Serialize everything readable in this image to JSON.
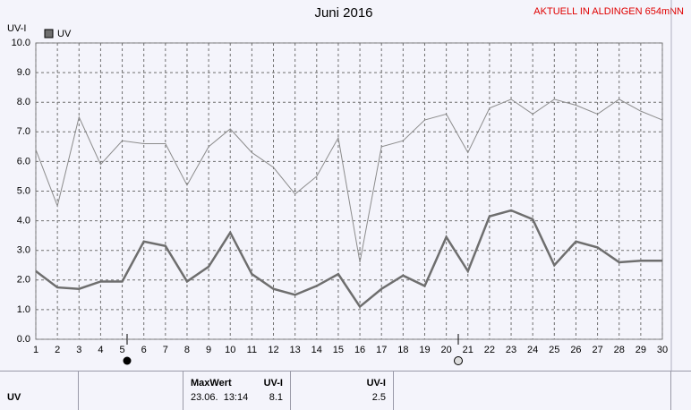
{
  "chart_data": {
    "type": "line",
    "title": "Juni 2016",
    "subtitle": "AKTUELL IN ALDINGEN 654mNN",
    "ylabel": "UV-I",
    "x": [
      1,
      2,
      3,
      4,
      5,
      6,
      7,
      8,
      9,
      10,
      11,
      12,
      13,
      14,
      15,
      16,
      17,
      18,
      19,
      20,
      21,
      22,
      23,
      24,
      25,
      26,
      27,
      28,
      29,
      30
    ],
    "xlim": [
      1,
      30
    ],
    "xticks": [
      1,
      2,
      3,
      4,
      5,
      6,
      7,
      8,
      9,
      10,
      11,
      12,
      13,
      14,
      15,
      16,
      17,
      18,
      19,
      20,
      21,
      22,
      23,
      24,
      25,
      26,
      27,
      28,
      29,
      30
    ],
    "ylim": [
      0,
      10
    ],
    "yticks": [
      {
        "value": 0,
        "label": "0.0"
      },
      {
        "value": 1,
        "label": "1.0"
      },
      {
        "value": 2,
        "label": "2.0"
      },
      {
        "value": 3,
        "label": "3.0"
      },
      {
        "value": 4,
        "label": "4.0"
      },
      {
        "value": 5,
        "label": "5.0"
      },
      {
        "value": 6,
        "label": "6.0"
      },
      {
        "value": 7,
        "label": "7.0"
      },
      {
        "value": 8,
        "label": "8.0"
      },
      {
        "value": 9,
        "label": "9.0"
      },
      {
        "value": 10,
        "label": "10.0"
      }
    ],
    "grid": true,
    "series": [
      {
        "name": "UV",
        "color": "#6e6e6e",
        "values": [
          2.3,
          1.75,
          1.7,
          1.95,
          1.95,
          3.3,
          3.15,
          1.95,
          2.45,
          3.6,
          2.2,
          1.7,
          1.5,
          1.8,
          2.2,
          1.1,
          1.7,
          2.15,
          1.8,
          3.45,
          2.3,
          4.15,
          4.35,
          4.05,
          2.5,
          3.3,
          3.1,
          2.6,
          2.65,
          2.65
        ]
      },
      {
        "color": "#8c8c8c",
        "values": [
          6.4,
          4.5,
          7.5,
          5.9,
          6.7,
          6.6,
          6.6,
          5.2,
          6.5,
          7.1,
          6.3,
          5.8,
          4.9,
          5.5,
          6.8,
          2.6,
          6.5,
          6.7,
          7.4,
          7.6,
          6.3,
          7.8,
          8.1,
          7.6,
          8.1,
          7.9,
          7.6,
          8.1,
          7.7,
          7.4
        ]
      }
    ]
  },
  "table": {
    "label": "UV",
    "max_header": "MaxWert",
    "max_unit": "UV-I",
    "max_time": "23.06.  13:14",
    "max_value": 8.1,
    "current_unit": "UV-I",
    "current_value": 2.5
  }
}
